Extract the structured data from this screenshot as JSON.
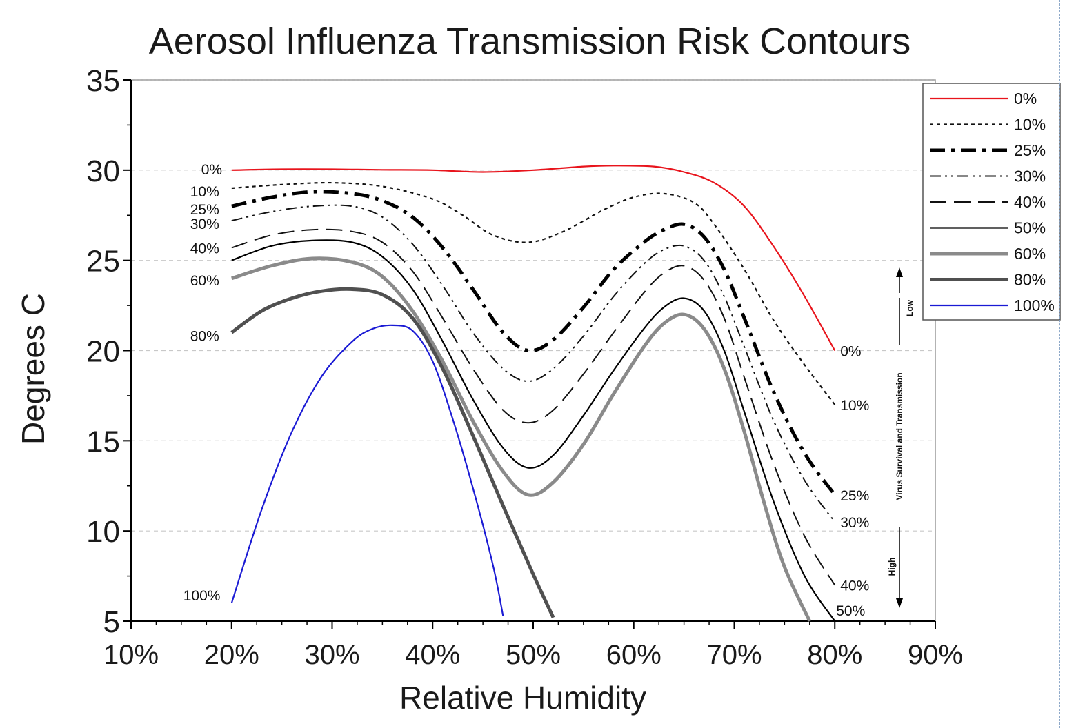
{
  "chart_data": {
    "type": "line",
    "title": "Aerosol Influenza Transmission Risk Contours",
    "xlabel": "Relative Humidity",
    "ylabel": "Degrees C",
    "xlim": [
      10,
      90
    ],
    "ylim": [
      5,
      35
    ],
    "xticks": [
      10,
      20,
      30,
      40,
      50,
      60,
      70,
      80,
      90
    ],
    "xtick_labels": [
      "10%",
      "20%",
      "30%",
      "40%",
      "50%",
      "60%",
      "70%",
      "80%",
      "90%"
    ],
    "yticks": [
      5,
      10,
      15,
      20,
      25,
      30,
      35
    ],
    "ytick_labels": [
      "5",
      "10",
      "15",
      "20",
      "25",
      "30",
      "35"
    ],
    "grid": "horizontal dashed",
    "legend_position": "top-right",
    "series": [
      {
        "name": "0%",
        "color": "#e8141c",
        "style": "solid",
        "start_label": "0%",
        "end_label": "0%",
        "points": [
          [
            20,
            30
          ],
          [
            25,
            30.05
          ],
          [
            30,
            30.05
          ],
          [
            35,
            30.02
          ],
          [
            40,
            30
          ],
          [
            45,
            29.9
          ],
          [
            50,
            30
          ],
          [
            55,
            30.2
          ],
          [
            58,
            30.25
          ],
          [
            62,
            30.2
          ],
          [
            65,
            29.9
          ],
          [
            68,
            29.3
          ],
          [
            71,
            28
          ],
          [
            74,
            25.7
          ],
          [
            77,
            23
          ],
          [
            80,
            20
          ]
        ]
      },
      {
        "name": "10%",
        "color": "#111111",
        "style": "dotted",
        "start_label": "10%",
        "end_label": "10%",
        "points": [
          [
            20,
            29
          ],
          [
            25,
            29.2
          ],
          [
            30,
            29.3
          ],
          [
            35,
            29.1
          ],
          [
            40,
            28.4
          ],
          [
            43,
            27.5
          ],
          [
            46,
            26.4
          ],
          [
            49.5,
            26
          ],
          [
            53,
            26.6
          ],
          [
            57,
            27.8
          ],
          [
            60,
            28.5
          ],
          [
            63,
            28.7
          ],
          [
            66,
            28.2
          ],
          [
            68,
            27
          ],
          [
            71,
            24.5
          ],
          [
            74,
            21.6
          ],
          [
            77,
            19.2
          ],
          [
            80,
            17
          ]
        ]
      },
      {
        "name": "25%",
        "color": "#000000",
        "style": "dashdot",
        "start_label": "25%",
        "end_label": "25%",
        "points": [
          [
            20,
            28
          ],
          [
            24,
            28.5
          ],
          [
            28,
            28.8
          ],
          [
            32,
            28.7
          ],
          [
            35,
            28.3
          ],
          [
            38,
            27.4
          ],
          [
            41,
            25.7
          ],
          [
            44,
            23.4
          ],
          [
            47,
            21
          ],
          [
            49.5,
            20
          ],
          [
            52,
            20.6
          ],
          [
            55,
            22.4
          ],
          [
            58,
            24.5
          ],
          [
            61,
            26
          ],
          [
            63,
            26.7
          ],
          [
            65,
            27
          ],
          [
            67,
            26.3
          ],
          [
            69,
            24.5
          ],
          [
            71,
            21.8
          ],
          [
            74,
            17.6
          ],
          [
            77,
            14.3
          ],
          [
            80,
            12
          ]
        ]
      },
      {
        "name": "30%",
        "color": "#111111",
        "style": "dashdotdot",
        "start_label": "30%",
        "end_label": "30%",
        "points": [
          [
            20,
            27.2
          ],
          [
            24,
            27.7
          ],
          [
            28,
            28
          ],
          [
            32,
            28
          ],
          [
            35,
            27.4
          ],
          [
            38,
            25.9
          ],
          [
            41,
            23.6
          ],
          [
            44,
            21
          ],
          [
            47,
            19
          ],
          [
            49.5,
            18.3
          ],
          [
            52,
            19
          ],
          [
            55,
            20.8
          ],
          [
            58,
            23
          ],
          [
            61,
            24.8
          ],
          [
            63,
            25.6
          ],
          [
            65,
            25.8
          ],
          [
            67,
            25
          ],
          [
            69,
            23
          ],
          [
            71,
            20.2
          ],
          [
            74,
            16
          ],
          [
            77,
            12.8
          ],
          [
            80,
            10.5
          ]
        ]
      },
      {
        "name": "40%",
        "color": "#111111",
        "style": "longdash",
        "start_label": "40%",
        "end_label": "40%",
        "points": [
          [
            20,
            25.7
          ],
          [
            24,
            26.4
          ],
          [
            28,
            26.7
          ],
          [
            32,
            26.6
          ],
          [
            35,
            26
          ],
          [
            38,
            24.4
          ],
          [
            41,
            21.8
          ],
          [
            44,
            19
          ],
          [
            47,
            16.7
          ],
          [
            49.5,
            16
          ],
          [
            52,
            16.7
          ],
          [
            55,
            18.7
          ],
          [
            58,
            21
          ],
          [
            61,
            23.2
          ],
          [
            63,
            24.3
          ],
          [
            65,
            24.7
          ],
          [
            67,
            23.9
          ],
          [
            69,
            21.8
          ],
          [
            71,
            18.5
          ],
          [
            74,
            13.6
          ],
          [
            77,
            9.7
          ],
          [
            80,
            7
          ]
        ]
      },
      {
        "name": "50%",
        "color": "#000000",
        "style": "solid",
        "start_label": "",
        "end_label": "50%",
        "points": [
          [
            20,
            25
          ],
          [
            24,
            25.8
          ],
          [
            28,
            26.1
          ],
          [
            32,
            26
          ],
          [
            35,
            25.2
          ],
          [
            38,
            23.4
          ],
          [
            41,
            20.5
          ],
          [
            44,
            17.3
          ],
          [
            47,
            14.6
          ],
          [
            49.5,
            13.5
          ],
          [
            52,
            14.2
          ],
          [
            55,
            16.4
          ],
          [
            58,
            18.9
          ],
          [
            61,
            21.2
          ],
          [
            63,
            22.4
          ],
          [
            65,
            22.9
          ],
          [
            67,
            22.2
          ],
          [
            69,
            20
          ],
          [
            71,
            16.6
          ],
          [
            74,
            11.5
          ],
          [
            77,
            7.5
          ],
          [
            80,
            5
          ]
        ]
      },
      {
        "name": "60%",
        "color": "#8a8a8a",
        "style": "thick",
        "start_label": "60%",
        "end_label": "",
        "points": [
          [
            20,
            24
          ],
          [
            24,
            24.7
          ],
          [
            28,
            25.1
          ],
          [
            32,
            24.9
          ],
          [
            35,
            24.1
          ],
          [
            38,
            22.2
          ],
          [
            41,
            19.4
          ],
          [
            44,
            16.1
          ],
          [
            47,
            13.3
          ],
          [
            49.5,
            12
          ],
          [
            52,
            12.7
          ],
          [
            55,
            14.8
          ],
          [
            58,
            17.6
          ],
          [
            61,
            20.2
          ],
          [
            63,
            21.5
          ],
          [
            65,
            22
          ],
          [
            67,
            21.2
          ],
          [
            69,
            19
          ],
          [
            71,
            15.5
          ],
          [
            73,
            11.5
          ],
          [
            75,
            8
          ],
          [
            77.5,
            5
          ]
        ]
      },
      {
        "name": "80%",
        "color": "#505050",
        "style": "thick",
        "start_label": "80%",
        "end_label": "",
        "points": [
          [
            20,
            21
          ],
          [
            23,
            22.2
          ],
          [
            26,
            22.9
          ],
          [
            29,
            23.3
          ],
          [
            32,
            23.4
          ],
          [
            35,
            23.1
          ],
          [
            38,
            21.8
          ],
          [
            41,
            19
          ],
          [
            44,
            15.3
          ],
          [
            47,
            11.4
          ],
          [
            50,
            7.6
          ],
          [
            52,
            5.2
          ]
        ]
      },
      {
        "name": "100%",
        "color": "#1a1ad4",
        "style": "solid",
        "start_label": "100%",
        "end_label": "",
        "points": [
          [
            20,
            6
          ],
          [
            23,
            11.2
          ],
          [
            26,
            15.5
          ],
          [
            29,
            18.6
          ],
          [
            32,
            20.5
          ],
          [
            34,
            21.2
          ],
          [
            36,
            21.4
          ],
          [
            38,
            21.1
          ],
          [
            40,
            19.4
          ],
          [
            42,
            16.2
          ],
          [
            44,
            12.4
          ],
          [
            46,
            8.1
          ],
          [
            47,
            5.3
          ]
        ]
      }
    ],
    "side_annotation": {
      "low": "Low",
      "middle": "Virus Survival and Transmission",
      "high": "High"
    }
  }
}
